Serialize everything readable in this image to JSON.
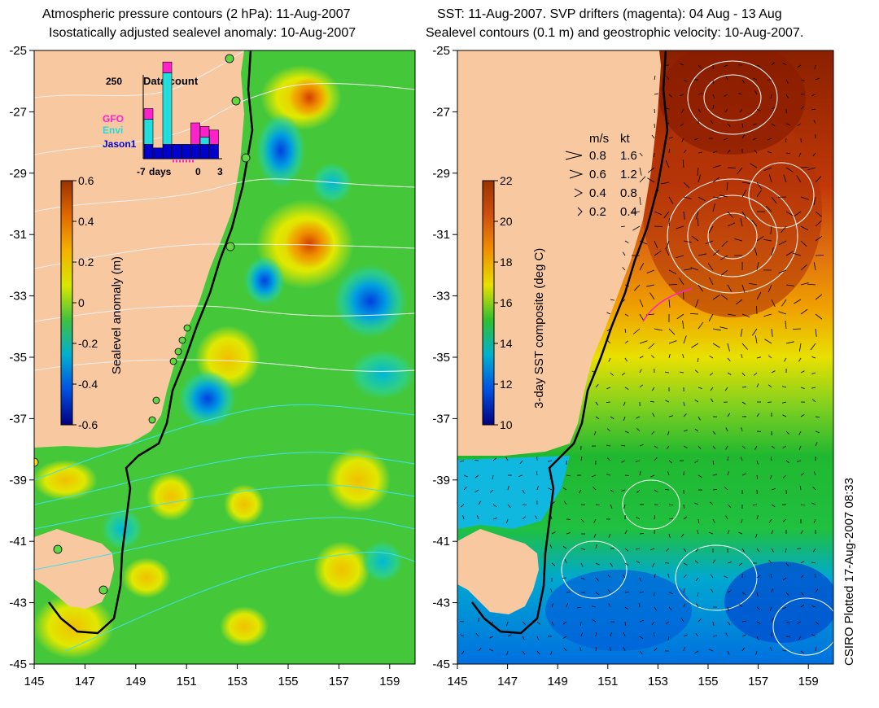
{
  "left_panel": {
    "title_line1": "Atmospheric pressure contours (2 hPa): 11-Aug-2007",
    "title_line2": "Isostatically adjusted sealevel anomaly: 10-Aug-2007",
    "colorbar": {
      "label": "Sealevel anomaly (m)",
      "ticks": [
        "0.6",
        "0.4",
        "0.2",
        "0",
        "-0.2",
        "-0.4",
        "-0.6"
      ],
      "colors": [
        "#993300",
        "#e06a00",
        "#f5b000",
        "#d8e800",
        "#40c040",
        "#00b0d0",
        "#0050e0",
        "#000080"
      ]
    },
    "inset": {
      "title": "Data count",
      "ymax_label": "250",
      "satellites": [
        {
          "name": "GFO",
          "color": "#ff22cc"
        },
        {
          "name": "Envi",
          "color": "#22dddd"
        },
        {
          "name": "Jason1",
          "color": "#0000cc"
        }
      ],
      "x_labels": [
        "-7",
        "days",
        "0",
        "3"
      ],
      "bars": [
        {
          "jason1": 40,
          "envi": 70,
          "gfo": 30
        },
        {
          "jason1": 30,
          "envi": 0,
          "gfo": 0
        },
        {
          "jason1": 40,
          "envi": 200,
          "gfo": 30
        },
        {
          "jason1": 40,
          "envi": 0,
          "gfo": 0
        },
        {
          "jason1": 40,
          "envi": 0,
          "gfo": 0
        },
        {
          "jason1": 40,
          "envi": 0,
          "gfo": 60
        },
        {
          "jason1": 40,
          "envi": 20,
          "gfo": 30
        },
        {
          "jason1": 40,
          "envi": 0,
          "gfo": 40
        }
      ]
    }
  },
  "right_panel": {
    "title_line1": "SST: 11-Aug-2007. SVP drifters (magenta): 04 Aug - 13 Aug",
    "title_line2": "Sealevel contours (0.1 m) and geostrophic velocity: 10-Aug-2007.",
    "colorbar": {
      "label": "3-day SST composite (deg C)",
      "ticks": [
        "22",
        "20",
        "18",
        "16",
        "14",
        "12",
        "10"
      ],
      "colors": [
        "#993300",
        "#d05010",
        "#f09000",
        "#e8e000",
        "#30c030",
        "#00b0d0",
        "#0050e0",
        "#000080"
      ]
    },
    "velocity_legend": {
      "header_ms": "m/s",
      "header_kt": "kt",
      "rows": [
        {
          "ms": "0.8",
          "kt": "1.6"
        },
        {
          "ms": "0.6",
          "kt": "1.2"
        },
        {
          "ms": "0.4",
          "kt": "0.8"
        },
        {
          "ms": "0.2",
          "kt": "0.4"
        }
      ]
    }
  },
  "axes": {
    "x_ticks": [
      "145",
      "147",
      "149",
      "151",
      "153",
      "155",
      "157",
      "159"
    ],
    "y_ticks": [
      "-25",
      "-27",
      "-29",
      "-31",
      "-33",
      "-35",
      "-37",
      "-39",
      "-41",
      "-43",
      "-45"
    ]
  },
  "credit": "CSIRO Plotted 17-Aug-2007 08:33"
}
